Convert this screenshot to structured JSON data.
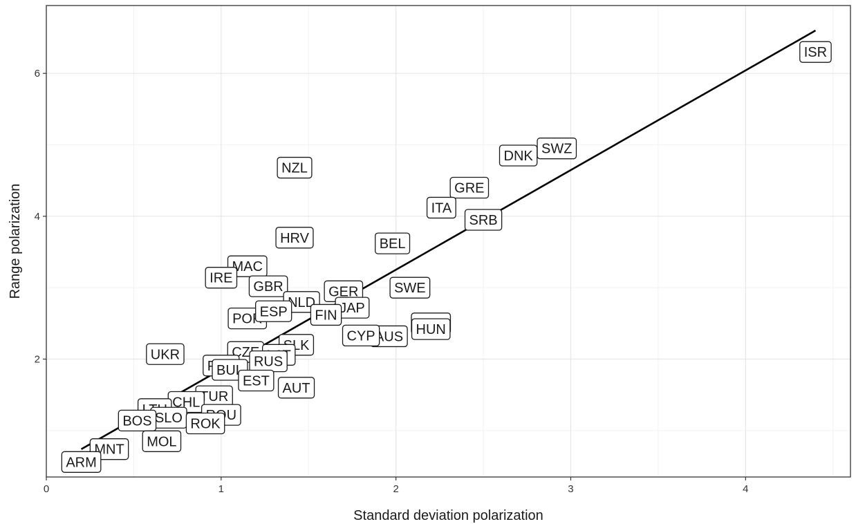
{
  "chart_data": {
    "type": "scatter",
    "xlabel": "Standard deviation polarization",
    "ylabel": "Range polarization",
    "xlim": [
      0,
      4.6
    ],
    "ylim": [
      0.35,
      6.95
    ],
    "x_ticks": [
      0,
      1,
      2,
      3,
      4
    ],
    "y_ticks": [
      2,
      4,
      6
    ],
    "grid": true,
    "legend": "none",
    "colors": {
      "frame": "#333333",
      "grid_major": "#e6e6e6",
      "grid_minor": "#f2f2f2",
      "trend": "#000000",
      "label_border": "#1a1a1a",
      "label_fill": "#ffffff"
    },
    "trend_line": {
      "x": [
        0.2,
        4.4
      ],
      "y": [
        0.74,
        6.6
      ]
    },
    "points": [
      {
        "label": "ISR",
        "x": 4.4,
        "y": 6.3
      },
      {
        "label": "SWZ",
        "x": 2.92,
        "y": 4.95
      },
      {
        "label": "DNK",
        "x": 2.7,
        "y": 4.85
      },
      {
        "label": "NZL",
        "x": 1.42,
        "y": 4.68
      },
      {
        "label": "GRE",
        "x": 2.42,
        "y": 4.4
      },
      {
        "label": "ITA",
        "x": 2.26,
        "y": 4.12
      },
      {
        "label": "SRB",
        "x": 2.5,
        "y": 3.95
      },
      {
        "label": "HRV",
        "x": 1.42,
        "y": 3.7
      },
      {
        "label": "BEL",
        "x": 1.98,
        "y": 3.62
      },
      {
        "label": "MAC",
        "x": 1.15,
        "y": 3.3
      },
      {
        "label": "IRE",
        "x": 1.0,
        "y": 3.14
      },
      {
        "label": "GBR",
        "x": 1.27,
        "y": 3.02
      },
      {
        "label": "SWE",
        "x": 2.08,
        "y": 3.0
      },
      {
        "label": "GER",
        "x": 1.7,
        "y": 2.95
      },
      {
        "label": "NLD",
        "x": 1.46,
        "y": 2.8
      },
      {
        "label": "JAP",
        "x": 1.75,
        "y": 2.72
      },
      {
        "label": "FIN",
        "x": 1.6,
        "y": 2.62
      },
      {
        "label": "POR",
        "x": 1.15,
        "y": 2.57
      },
      {
        "label": "ESP",
        "x": 1.3,
        "y": 2.67
      },
      {
        "label": "NOR",
        "x": 2.2,
        "y": 2.5
      },
      {
        "label": "HUN",
        "x": 2.2,
        "y": 2.42
      },
      {
        "label": "AUS",
        "x": 1.96,
        "y": 2.32
      },
      {
        "label": "CYP",
        "x": 1.8,
        "y": 2.33
      },
      {
        "label": "SLK",
        "x": 1.43,
        "y": 2.2
      },
      {
        "label": "CZE",
        "x": 1.14,
        "y": 2.1
      },
      {
        "label": "UKR",
        "x": 0.68,
        "y": 2.07
      },
      {
        "label": "LAT",
        "x": 1.33,
        "y": 2.06
      },
      {
        "label": "POL",
        "x": 1.0,
        "y": 1.91
      },
      {
        "label": "RUS",
        "x": 1.27,
        "y": 1.97
      },
      {
        "label": "BUL",
        "x": 1.05,
        "y": 1.85
      },
      {
        "label": "EST",
        "x": 1.2,
        "y": 1.7
      },
      {
        "label": "AUT",
        "x": 1.43,
        "y": 1.6
      },
      {
        "label": "TUR",
        "x": 0.96,
        "y": 1.48
      },
      {
        "label": "CHL",
        "x": 0.8,
        "y": 1.4
      },
      {
        "label": "LTU",
        "x": 0.62,
        "y": 1.3
      },
      {
        "label": "SLO",
        "x": 0.7,
        "y": 1.18
      },
      {
        "label": "ROU",
        "x": 1.0,
        "y": 1.22
      },
      {
        "label": "ROK",
        "x": 0.91,
        "y": 1.1
      },
      {
        "label": "BOS",
        "x": 0.52,
        "y": 1.14
      },
      {
        "label": "MOL",
        "x": 0.66,
        "y": 0.85
      },
      {
        "label": "MNT",
        "x": 0.36,
        "y": 0.74
      },
      {
        "label": "ARM",
        "x": 0.2,
        "y": 0.56
      }
    ]
  }
}
